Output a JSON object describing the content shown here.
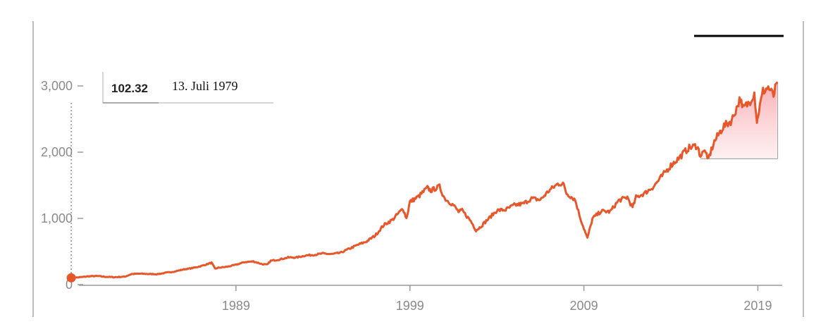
{
  "chart_data": {
    "type": "line",
    "title": "",
    "xlabel": "",
    "ylabel": "",
    "x_ticks": [
      "1989",
      "1999",
      "2009",
      "2019"
    ],
    "y_ticks": [
      "0",
      "1,000",
      "2,000",
      "3,000"
    ],
    "ylim": [
      0,
      3150
    ],
    "xlim": [
      1979.0,
      2020.4
    ],
    "grid": false,
    "series": [
      {
        "color": "#e8572a",
        "x": [
          1979.53,
          1980.0,
          1980.5,
          1981.0,
          1981.5,
          1982.0,
          1982.6,
          1983.0,
          1983.5,
          1984.0,
          1984.5,
          1985.0,
          1985.5,
          1986.0,
          1986.5,
          1987.0,
          1987.6,
          1987.8,
          1988.0,
          1988.5,
          1989.0,
          1989.5,
          1990.0,
          1990.5,
          1990.8,
          1991.0,
          1991.5,
          1992.0,
          1992.5,
          1993.0,
          1993.5,
          1994.0,
          1994.5,
          1995.0,
          1995.5,
          1996.0,
          1996.5,
          1997.0,
          1997.5,
          1998.0,
          1998.6,
          1998.8,
          1999.0,
          1999.5,
          2000.0,
          2000.2,
          2000.7,
          2001.0,
          2001.5,
          2001.8,
          2002.0,
          2002.5,
          2002.8,
          2003.0,
          2003.5,
          2004.0,
          2004.5,
          2005.0,
          2005.5,
          2006.0,
          2006.5,
          2007.0,
          2007.5,
          2007.8,
          2008.0,
          2008.5,
          2008.8,
          2009.0,
          2009.2,
          2009.5,
          2010.0,
          2010.5,
          2011.0,
          2011.5,
          2011.8,
          2012.0,
          2012.5,
          2013.0,
          2013.5,
          2014.0,
          2014.5,
          2015.0,
          2015.5,
          2015.7,
          2016.0,
          2016.1,
          2016.5,
          2017.0,
          2017.5,
          2018.0,
          2018.1,
          2018.5,
          2018.8,
          2018.95,
          2019.0,
          2019.3,
          2019.6,
          2019.9,
          2020.1
        ],
        "y": [
          102.32,
          110,
          125,
          130,
          118,
          112,
          120,
          160,
          165,
          160,
          158,
          180,
          200,
          230,
          250,
          280,
          330,
          240,
          255,
          270,
          300,
          340,
          350,
          310,
          300,
          360,
          380,
          410,
          410,
          440,
          450,
          470,
          460,
          480,
          540,
          600,
          650,
          740,
          900,
          980,
          1150,
          1000,
          1250,
          1330,
          1460,
          1420,
          1480,
          1300,
          1200,
          1100,
          1120,
          960,
          820,
          860,
          990,
          1120,
          1130,
          1200,
          1220,
          1300,
          1280,
          1420,
          1520,
          1530,
          1380,
          1280,
          1000,
          850,
          700,
          1000,
          1110,
          1100,
          1270,
          1320,
          1160,
          1320,
          1380,
          1480,
          1640,
          1800,
          1920,
          2060,
          2100,
          1950,
          2030,
          1860,
          2160,
          2380,
          2480,
          2820,
          2650,
          2750,
          2900,
          2460,
          2550,
          2920,
          2980,
          2850,
          3050
        ]
      }
    ],
    "tooltip": {
      "value": "102.32",
      "date": "13. Juli 1979"
    }
  },
  "colors": {
    "line": "#e8572a",
    "fill": "#f8a6aa",
    "axis": "#9a9a9a",
    "tick_text": "#8a8a8a"
  }
}
